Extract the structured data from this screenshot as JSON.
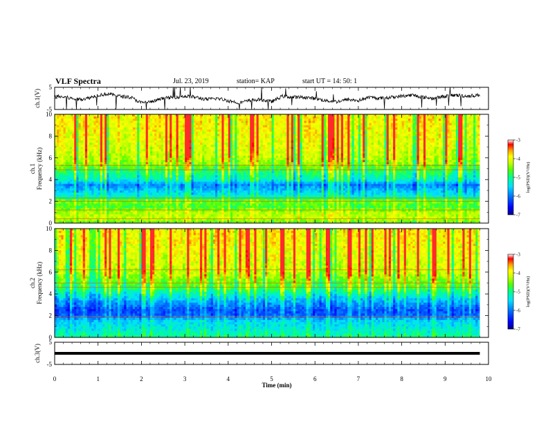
{
  "header": {
    "title": "VLF Spectra",
    "date": "Jul. 23, 2019",
    "station": "station= KAP",
    "start": "start  UT =   14: 50: 1"
  },
  "colors": {
    "colormap": [
      "#00008c",
      "#0000ff",
      "#0077ff",
      "#00e0ff",
      "#00ff90",
      "#55ff00",
      "#ccff00",
      "#ffff00",
      "#ffa000",
      "#ff0000",
      "#ffffff"
    ],
    "trace": "#000000"
  },
  "chart_data": [
    {
      "type": "line",
      "name": "ch1-waveform",
      "ylabel": "ch.1(V)",
      "ylim": [
        -5,
        5
      ],
      "yticks": [
        "5",
        "-5"
      ],
      "x": [
        0,
        0.25,
        0.5,
        0.75,
        1.0,
        1.25,
        1.5,
        1.75,
        2.0,
        2.25,
        2.5,
        2.75,
        3.0,
        3.25,
        3.5,
        3.75,
        4.0,
        4.25,
        4.5,
        4.75,
        5.0,
        5.25,
        5.5,
        5.75,
        6.0,
        6.25,
        6.5,
        6.75,
        7.0,
        7.25,
        7.5,
        7.75,
        8.0,
        8.25,
        8.5,
        8.75,
        9.0,
        9.25,
        9.5,
        9.8
      ],
      "values": [
        1,
        0.5,
        -0.5,
        0,
        1.5,
        2,
        1,
        0.5,
        -2,
        -1.5,
        0,
        0.5,
        1,
        0.5,
        -0.5,
        0,
        -1,
        -2,
        -1,
        -0.5,
        -1.5,
        1,
        0.5,
        0.5,
        0,
        -1,
        -1.5,
        -0.5,
        -1,
        0.5,
        0,
        0.5,
        1,
        1.5,
        0.5,
        0,
        1,
        1.5,
        1,
        1.5
      ]
    },
    {
      "type": "heatmap",
      "name": "ch1-spectrogram",
      "ylabel": "ch.1 Frequency (kHz)",
      "ylim": [
        0,
        10
      ],
      "xlim": [
        0,
        10
      ],
      "yticks": [
        "0",
        "2",
        "4",
        "6",
        "8",
        "10"
      ],
      "colorbar": {
        "label": "log(PSD)(V²/Hz)",
        "range": [
          -7,
          -3
        ],
        "ticks": [
          "-3",
          "-4",
          "-5",
          "-6",
          "-7"
        ]
      },
      "freq_profile": [
        {
          "f": 0.0,
          "level": -4.6
        },
        {
          "f": 0.5,
          "level": -4.2
        },
        {
          "f": 1.0,
          "level": -4.3
        },
        {
          "f": 1.5,
          "level": -4.7
        },
        {
          "f": 2.0,
          "level": -4.5
        },
        {
          "f": 2.5,
          "level": -5.3
        },
        {
          "f": 3.0,
          "level": -5.6
        },
        {
          "f": 3.5,
          "level": -5.9
        },
        {
          "f": 4.0,
          "level": -5.2
        },
        {
          "f": 4.5,
          "level": -5.0
        },
        {
          "f": 5.0,
          "level": -4.7
        },
        {
          "f": 5.5,
          "level": -4.4
        },
        {
          "f": 6.0,
          "level": -4.2
        },
        {
          "f": 7.0,
          "level": -4.1
        },
        {
          "f": 8.0,
          "level": -4.0
        },
        {
          "f": 9.0,
          "level": -3.9
        },
        {
          "f": 10.0,
          "level": -3.9
        }
      ],
      "lines_khz": [
        0.4,
        1.2,
        2.0,
        2.3,
        4.9,
        5.3
      ]
    },
    {
      "type": "heatmap",
      "name": "ch2-spectrogram",
      "ylabel": "ch.2 Frequency (kHz)",
      "ylim": [
        0,
        10
      ],
      "xlim": [
        0,
        10
      ],
      "yticks": [
        "0",
        "2",
        "4",
        "6",
        "8",
        "10"
      ],
      "colorbar": {
        "label": "log(PSD)(V²/Hz)",
        "range": [
          -7,
          -3
        ],
        "ticks": [
          "-3",
          "-4",
          "-5",
          "-6",
          "-7"
        ]
      },
      "freq_profile": [
        {
          "f": 0.0,
          "level": -5.0
        },
        {
          "f": 0.5,
          "level": -5.2
        },
        {
          "f": 1.0,
          "level": -5.4
        },
        {
          "f": 1.5,
          "level": -5.5
        },
        {
          "f": 2.0,
          "level": -6.1
        },
        {
          "f": 2.5,
          "level": -6.2
        },
        {
          "f": 3.0,
          "level": -5.9
        },
        {
          "f": 3.5,
          "level": -5.6
        },
        {
          "f": 4.0,
          "level": -5.2
        },
        {
          "f": 4.5,
          "level": -4.8
        },
        {
          "f": 5.0,
          "level": -4.6
        },
        {
          "f": 5.5,
          "level": -4.4
        },
        {
          "f": 6.0,
          "level": -4.2
        },
        {
          "f": 7.0,
          "level": -4.1
        },
        {
          "f": 8.0,
          "level": -4.0
        },
        {
          "f": 9.0,
          "level": -3.9
        },
        {
          "f": 10.0,
          "level": -3.9
        }
      ],
      "lines_khz": [
        1.9,
        4.6,
        5.0,
        6.2
      ]
    },
    {
      "type": "line",
      "name": "ch3-waveform",
      "ylabel": "ch.3(V)",
      "ylim": [
        -5,
        5
      ],
      "yticks": [
        "5",
        "-5"
      ],
      "x": [
        0,
        9.8
      ],
      "values": [
        0,
        0
      ]
    }
  ],
  "xaxis": {
    "label": "Time (min)",
    "ticks": [
      "0",
      "1",
      "2",
      "3",
      "4",
      "5",
      "6",
      "7",
      "8",
      "9",
      "10"
    ]
  }
}
